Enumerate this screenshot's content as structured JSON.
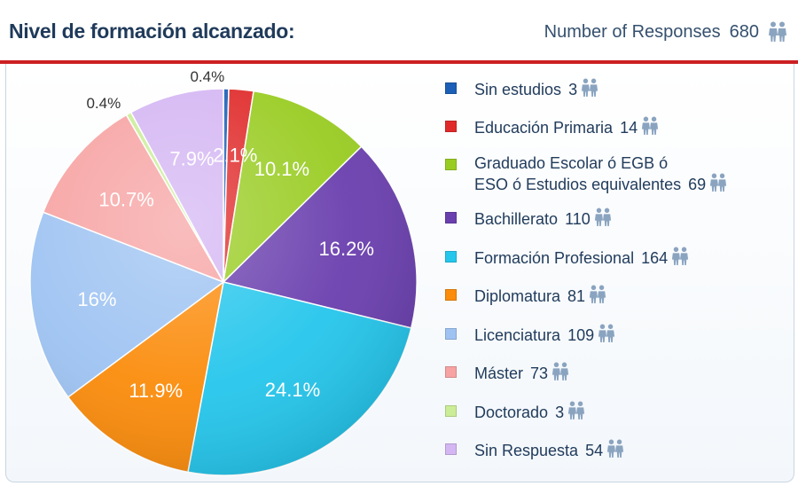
{
  "header": {
    "title": "Nivel de formación alcanzado:",
    "responses_label": "Number of Responses",
    "responses_count": "680",
    "responses_icon": "people-icon"
  },
  "colors": {
    "title": "#1f3a5a",
    "rule": "#cc1f22",
    "icon": "#8aa4c0"
  },
  "chart_data": {
    "type": "pie",
    "title": "Nivel de formación alcanzado:",
    "total": 680,
    "legend_position": "right",
    "slices": [
      {
        "label": "Sin estudios",
        "line2": "",
        "count": 3,
        "percent_label": "0.4%",
        "color": "#1b5fb6"
      },
      {
        "label": "Educación Primaria",
        "line2": "",
        "count": 14,
        "percent_label": "2.1%",
        "color": "#e02a2a"
      },
      {
        "label": "Graduado Escolar ó EGB ó",
        "line2": "ESO ó Estudios equivalentes",
        "count": 69,
        "percent_label": "10.1%",
        "color": "#99cc22"
      },
      {
        "label": "Bachillerato",
        "line2": "",
        "count": 110,
        "percent_label": "16.2%",
        "color": "#6a3fae"
      },
      {
        "label": "Formación Profesional",
        "line2": "",
        "count": 164,
        "percent_label": "24.1%",
        "color": "#25c6ec"
      },
      {
        "label": "Diplomatura",
        "line2": "",
        "count": 81,
        "percent_label": "11.9%",
        "color": "#fb8c0c"
      },
      {
        "label": "Licenciatura",
        "line2": "",
        "count": 109,
        "percent_label": "16%",
        "color": "#9ec3f2"
      },
      {
        "label": "Máster",
        "line2": "",
        "count": 73,
        "percent_label": "10.7%",
        "color": "#f7a3a3"
      },
      {
        "label": "Doctorado",
        "line2": "",
        "count": 3,
        "percent_label": "0.4%",
        "color": "#cbed98"
      },
      {
        "label": "Sin Respuesta",
        "line2": "",
        "count": 54,
        "percent_label": "7.9%",
        "color": "#d4b6f3"
      }
    ]
  }
}
